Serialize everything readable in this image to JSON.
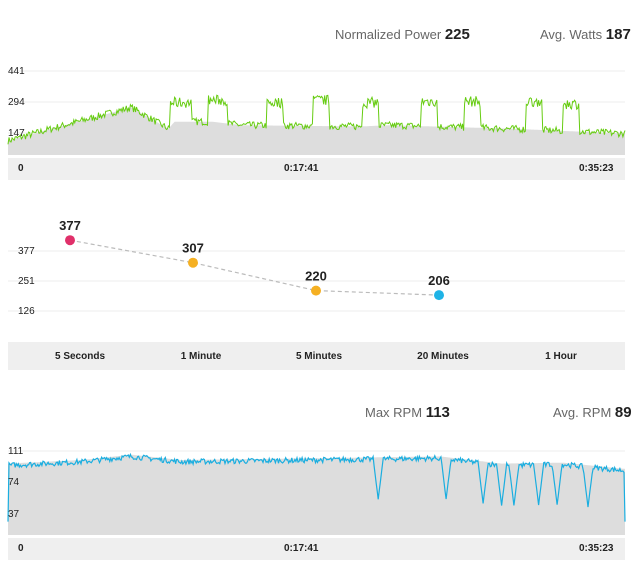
{
  "power": {
    "np_label": "Normalized Power",
    "np_value": "225",
    "avg_label": "Avg. Watts",
    "avg_value": "187",
    "y_ticks": [
      "441",
      "294",
      "147"
    ],
    "x_labels": [
      "0",
      "0:17:41",
      "0:35:23"
    ],
    "line_color": "#66cc11"
  },
  "curve": {
    "y_ticks": [
      "377",
      "251",
      "126"
    ],
    "categories": [
      "5 Seconds",
      "1 Minute",
      "5 Minutes",
      "20 Minutes",
      "1 Hour"
    ]
  },
  "cadence": {
    "max_label": "Max RPM",
    "max_value": "113",
    "avg_label": "Avg. RPM",
    "avg_value": "89",
    "y_ticks": [
      "111",
      "74",
      "37"
    ],
    "x_labels": [
      "0",
      "0:17:41",
      "0:35:23"
    ],
    "line_color": "#1aaee0"
  },
  "chart_data": [
    {
      "type": "line",
      "name": "power",
      "x_ticks": [
        "0",
        "0:17:41",
        "0:35:23"
      ],
      "y_ticks": [
        147,
        294,
        441
      ],
      "ylim": [
        60,
        480
      ],
      "profile": [
        [
          0,
          120
        ],
        [
          0.07,
          170
        ],
        [
          0.2,
          260
        ],
        [
          0.26,
          170
        ],
        [
          0.27,
          200
        ],
        [
          0.33,
          200
        ],
        [
          0.38,
          185
        ],
        [
          0.57,
          180
        ],
        [
          0.62,
          185
        ],
        [
          0.82,
          170
        ],
        [
          1.0,
          150
        ]
      ],
      "intervals": [
        {
          "start": 0.263,
          "end": 0.297,
          "value": 280
        },
        {
          "start": 0.325,
          "end": 0.355,
          "value": 290
        },
        {
          "start": 0.42,
          "end": 0.445,
          "value": 280
        },
        {
          "start": 0.495,
          "end": 0.52,
          "value": 290
        },
        {
          "start": 0.575,
          "end": 0.6,
          "value": 280
        },
        {
          "start": 0.67,
          "end": 0.695,
          "value": 285
        },
        {
          "start": 0.74,
          "end": 0.765,
          "value": 285
        },
        {
          "start": 0.84,
          "end": 0.865,
          "value": 285
        },
        {
          "start": 0.9,
          "end": 0.925,
          "value": 275
        }
      ]
    },
    {
      "type": "scatter",
      "name": "power-curve",
      "categories": [
        "5 Seconds",
        "1 Minute",
        "5 Minutes",
        "20 Minutes",
        "1 Hour"
      ],
      "points": [
        {
          "category": "5 Seconds",
          "value": 377,
          "color": "#e0306a"
        },
        {
          "category": "1 Minute",
          "value": 307,
          "color": "#f5b022"
        },
        {
          "category": "5 Minutes",
          "value": 220,
          "color": "#f5b022"
        },
        {
          "category": "20 Minutes",
          "value": 206,
          "color": "#1fb3e6"
        }
      ],
      "y_ticks": [
        126,
        251,
        377
      ],
      "ylim": [
        60,
        440
      ]
    },
    {
      "type": "line",
      "name": "cadence",
      "x_ticks": [
        "0",
        "0:17:41",
        "0:35:23"
      ],
      "y_ticks": [
        37,
        74,
        111
      ],
      "ylim": [
        10,
        122
      ],
      "profile": [
        [
          0,
          88
        ],
        [
          0.12,
          92
        ],
        [
          0.2,
          98
        ],
        [
          0.28,
          92
        ],
        [
          0.5,
          94
        ],
        [
          0.6,
          95
        ],
        [
          0.7,
          96
        ],
        [
          0.8,
          88
        ],
        [
          0.9,
          89
        ],
        [
          1.0,
          82
        ]
      ],
      "dips": [
        0.6,
        0.71,
        0.77,
        0.8,
        0.82,
        0.86,
        0.89,
        0.94
      ]
    }
  ]
}
